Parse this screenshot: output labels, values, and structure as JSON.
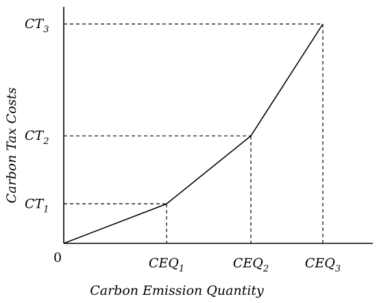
{
  "chart_data": {
    "type": "line",
    "title": "",
    "xlabel": "Carbon Emission Quantity",
    "ylabel": "Carbon Tax Costs",
    "origin_label": "0",
    "x_ticks": [
      {
        "base": "CEQ",
        "sub": "1"
      },
      {
        "base": "CEQ",
        "sub": "2"
      },
      {
        "base": "CEQ",
        "sub": "3"
      }
    ],
    "y_ticks": [
      {
        "base": "CT",
        "sub": "1"
      },
      {
        "base": "CT",
        "sub": "2"
      },
      {
        "base": "CT",
        "sub": "3"
      }
    ],
    "series": [
      {
        "points": [
          [
            0,
            0
          ],
          [
            1,
            1
          ],
          [
            2,
            2
          ],
          [
            3,
            3
          ]
        ]
      }
    ],
    "x_positions": [
      0,
      1.0,
      1.82,
      2.52
    ],
    "y_positions": [
      0,
      0.18,
      0.49,
      1.0
    ],
    "dashed_guides": true,
    "grid": false
  }
}
